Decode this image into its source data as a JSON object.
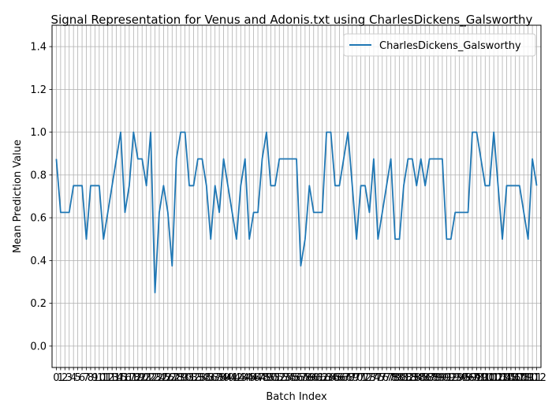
{
  "chart_data": {
    "type": "line",
    "title": "Signal Representation for Venus and Adonis.txt using CharlesDickens_Galsworthy",
    "xlabel": "Batch Index",
    "ylabel": "Mean Prediction Value",
    "ylim": [
      -0.1,
      1.5
    ],
    "xlim": [
      -1,
      113
    ],
    "y_ticks": [
      0.0,
      0.2,
      0.4,
      0.6,
      0.8,
      1.0,
      1.2,
      1.4
    ],
    "x_ticks": "every integer 0..112, labels overlapping",
    "grid": true,
    "legend_position": "upper-right",
    "line_color": "#1f77b4",
    "series": [
      {
        "name": "CharlesDickens_Galsworthy",
        "values": [
          0.875,
          0.625,
          0.625,
          0.625,
          0.75,
          0.75,
          0.75,
          0.5,
          0.75,
          0.75,
          0.75,
          0.5,
          0.625,
          0.75,
          0.875,
          1.0,
          0.625,
          0.75,
          1.0,
          0.875,
          0.875,
          0.75,
          1.0,
          0.25,
          0.625,
          0.75,
          0.625,
          0.375,
          0.875,
          1.0,
          1.0,
          0.75,
          0.75,
          0.875,
          0.875,
          0.75,
          0.5,
          0.75,
          0.625,
          0.875,
          0.75,
          0.625,
          0.5,
          0.75,
          0.875,
          0.5,
          0.625,
          0.625,
          0.875,
          1.0,
          0.75,
          0.75,
          0.875,
          0.875,
          0.875,
          0.875,
          0.875,
          0.375,
          0.5,
          0.75,
          0.625,
          0.625,
          0.625,
          1.0,
          1.0,
          0.75,
          0.75,
          0.875,
          1.0,
          0.75,
          0.5,
          0.75,
          0.75,
          0.625,
          0.875,
          0.5,
          0.625,
          0.75,
          0.875,
          0.5,
          0.5,
          0.75,
          0.875,
          0.875,
          0.75,
          0.875,
          0.75,
          0.875,
          0.875,
          0.875,
          0.875,
          0.5,
          0.5,
          0.625,
          0.625,
          0.625,
          0.625,
          1.0,
          1.0,
          0.875,
          0.75,
          0.75,
          1.0,
          0.75,
          0.5,
          0.75,
          0.75,
          0.75,
          0.75,
          0.625,
          0.5,
          0.875,
          0.75
        ]
      }
    ]
  }
}
